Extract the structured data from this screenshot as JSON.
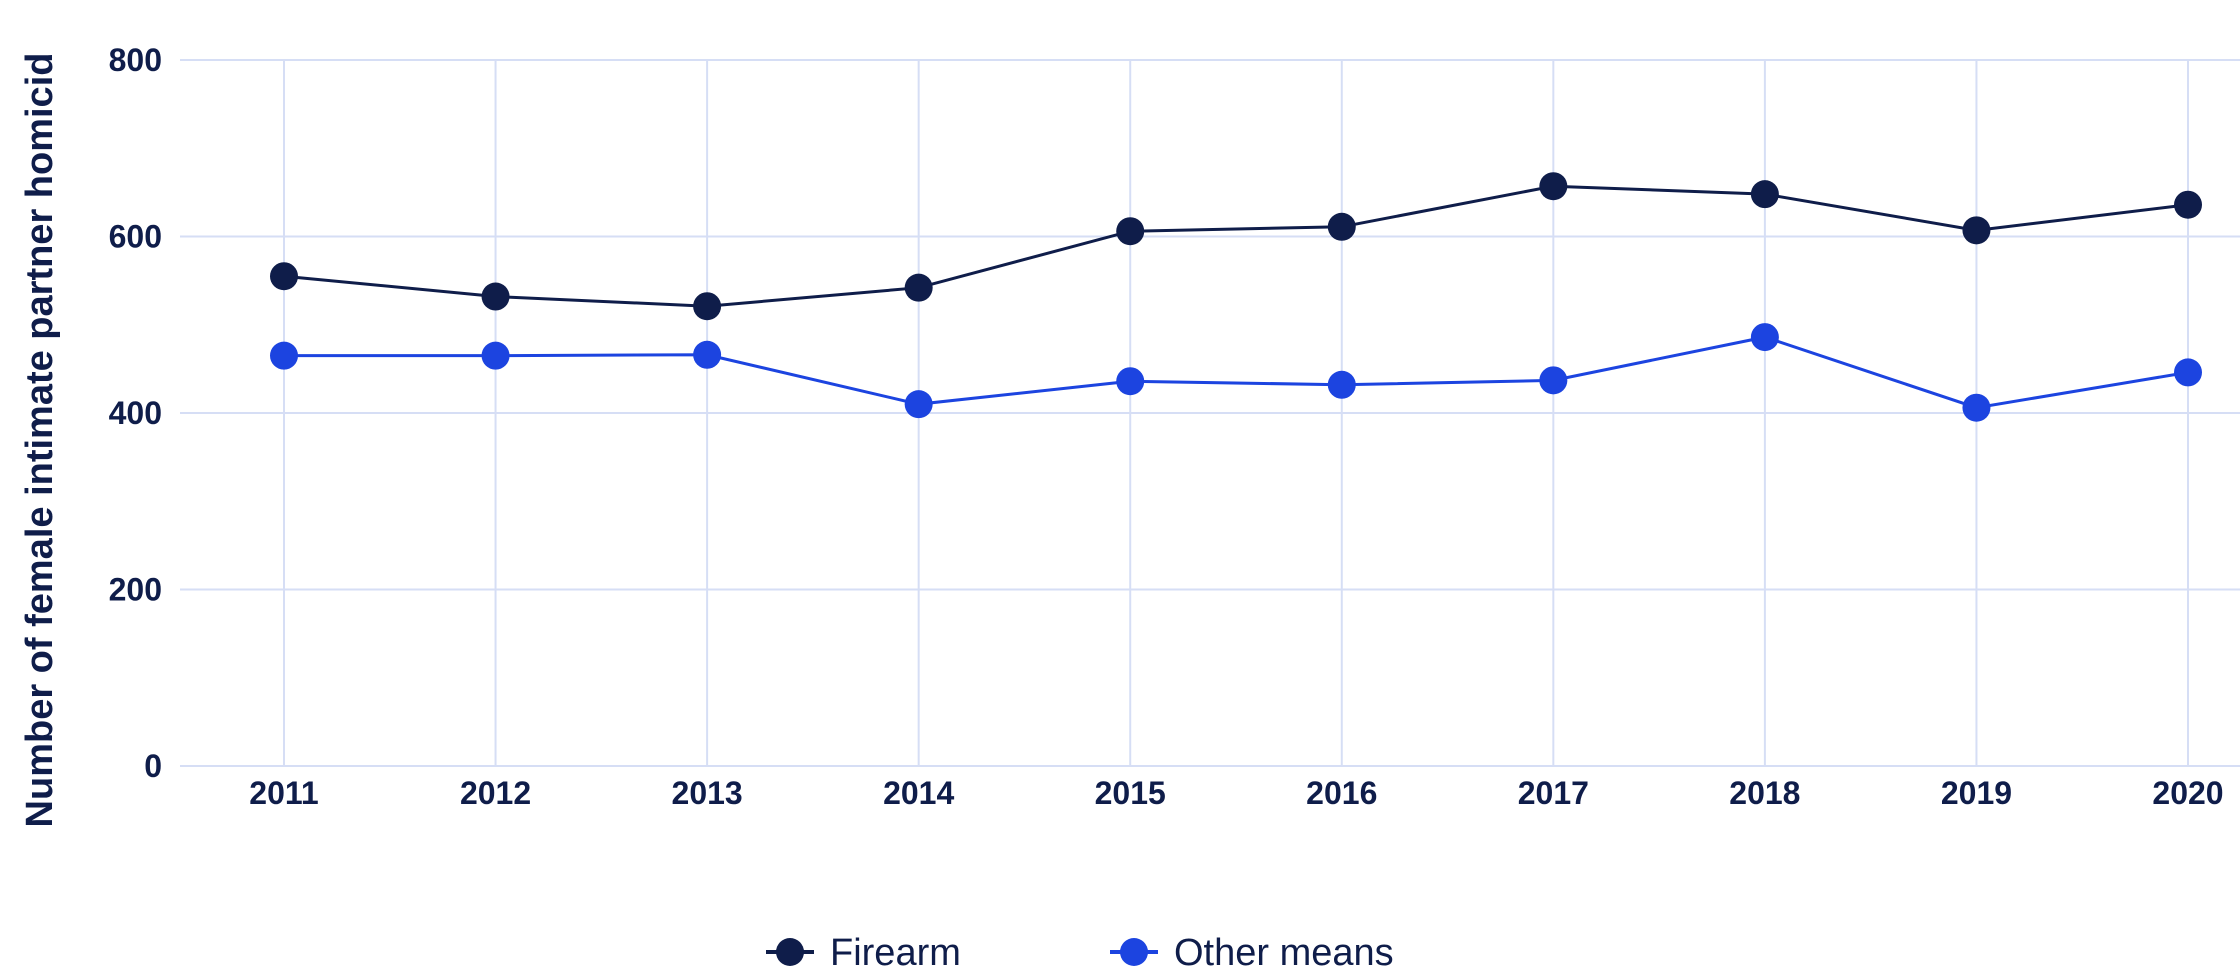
{
  "chart_data": {
    "type": "line",
    "title": "",
    "xlabel": "",
    "ylabel": "Number of female intimate partner homicid",
    "x": [
      "2011",
      "2012",
      "2013",
      "2014",
      "2015",
      "2016",
      "2017",
      "2018",
      "2019",
      "2020"
    ],
    "y_ticks": [
      "0",
      "200",
      "400",
      "600",
      "800"
    ],
    "ylim": [
      0,
      800
    ],
    "grid": true,
    "legend_position": "bottom-center",
    "series": [
      {
        "name": "Firearm",
        "color": "#0f1d4a",
        "values": [
          555,
          532,
          521,
          542,
          606,
          611,
          657,
          648,
          607,
          636
        ]
      },
      {
        "name": "Other means",
        "color": "#1c44e0",
        "values": [
          465,
          465,
          466,
          410,
          436,
          432,
          437,
          486,
          406,
          446
        ]
      }
    ],
    "grid_color": "#d6def5"
  }
}
